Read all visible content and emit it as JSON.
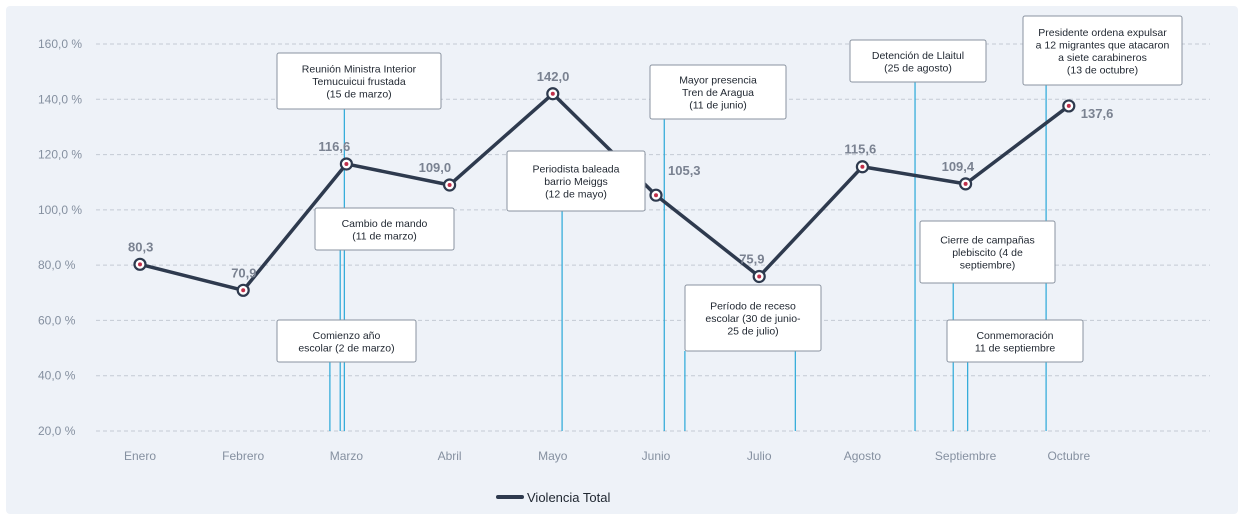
{
  "chart_data": {
    "type": "line",
    "title": "",
    "xlabel": "",
    "ylabel": "",
    "categories": [
      "Enero",
      "Febrero",
      "Marzo",
      "Abril",
      "Mayo",
      "Junio",
      "Julio",
      "Agosto",
      "Septiembre",
      "Octubre"
    ],
    "series": [
      {
        "name": "Violencia Total",
        "values": [
          80.3,
          70.9,
          116.6,
          109.0,
          142.0,
          105.3,
          75.9,
          115.6,
          109.4,
          137.6
        ],
        "labels": [
          "80,3",
          "70,9",
          "116,6",
          "109,0",
          "142,0",
          "105,3",
          "75,9",
          "115,6",
          "109,4",
          "137,6"
        ],
        "color": "#2e3a4e"
      }
    ],
    "ylim": [
      20,
      160
    ],
    "yticks": [
      20,
      40,
      60,
      80,
      100,
      120,
      140,
      160
    ],
    "ytick_labels": [
      "20,0 %",
      "40,0 %",
      "60,0 %",
      "80,0 %",
      "100,0 %",
      "120,0 %",
      "140,0 %",
      "160,0 %"
    ],
    "grid": true,
    "legend_position": "bottom-center",
    "annotation_color": "#29a8d8",
    "annotations": [
      {
        "text": "Comienzo año\nescolar (2 de marzo)",
        "x": 1.84
      },
      {
        "text": "Cambio de mando\n(11 de marzo)",
        "x": 1.94
      },
      {
        "text": "Reunión Ministra Interior\nTemucuicui frustada\n(15 de marzo)",
        "x": 1.98
      },
      {
        "text": "Periodista baleada\nbarrio Meiggs\n(12 de mayo)",
        "x": 4.09
      },
      {
        "text": "Mayor presencia\nTren de Aragua\n(11 de junio)",
        "x": 5.08
      },
      {
        "text": "Período de receso\nescolar (30 de junio-\n25 de julio)",
        "x": 5.28
      },
      {
        "text": "",
        "x": 6.35
      },
      {
        "text": "Detención de Llaitul\n(25 de agosto)",
        "x": 7.51
      },
      {
        "text": "Cierre de campañas\nplebiscito (4 de\nseptiembre)",
        "x": 7.88
      },
      {
        "text": "Conmemoración\n11 de septiembre",
        "x": 8.02
      },
      {
        "text": "Presidente ordena expulsar\na 12 migrantes que atacaron\na siete carabineros\n(13 de octubre)",
        "x": 8.78
      }
    ]
  }
}
